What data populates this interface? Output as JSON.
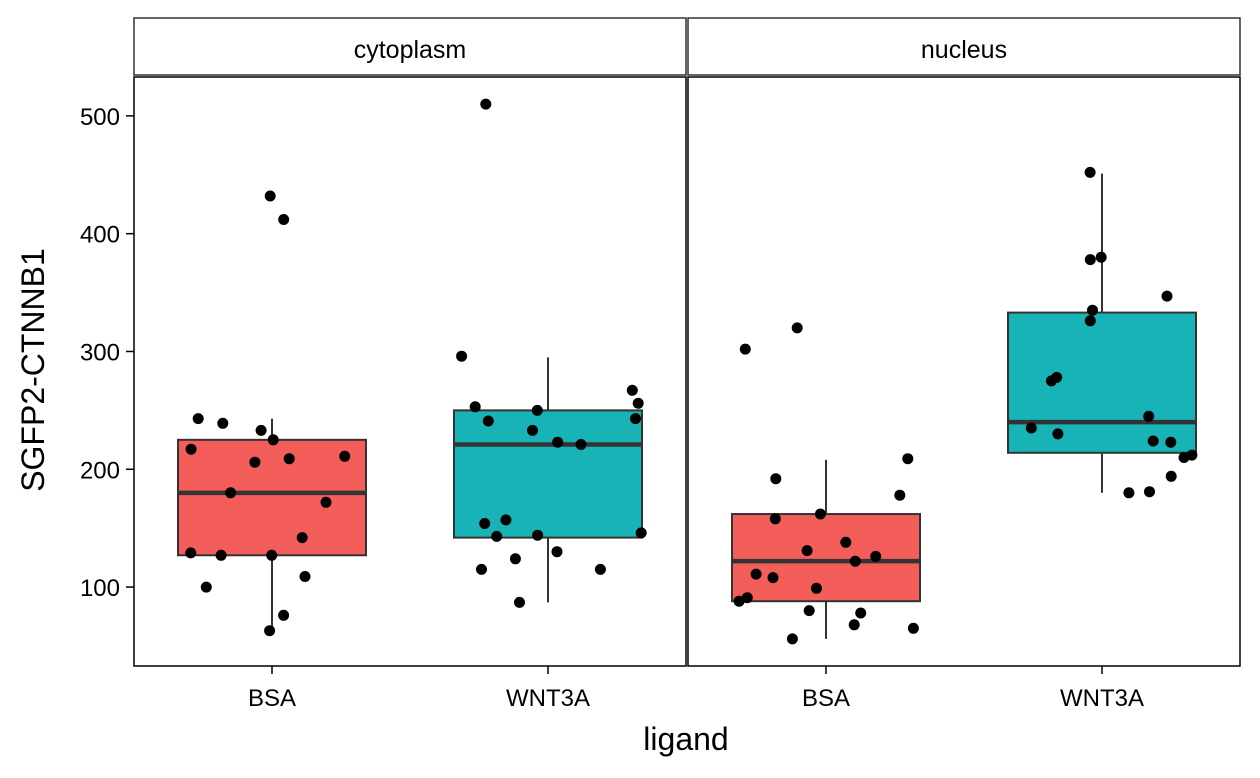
{
  "chart_data": {
    "type": "box",
    "ylabel": "SGFP2-CTNNB1",
    "xlabel": "ligand",
    "ylim": [
      33,
      533
    ],
    "yticks": [
      100,
      200,
      300,
      400,
      500
    ],
    "categories": [
      "BSA",
      "WNT3A"
    ],
    "colors": {
      "BSA": "#F35E5A",
      "WNT3A": "#17B3B7"
    },
    "panels": [
      {
        "label": "cytoplasm",
        "groups": [
          {
            "category": "BSA",
            "box": {
              "whisker_low": 64,
              "q1": 127,
              "median": 180,
              "q3": 225,
              "whisker_high": 243
            },
            "points": [
              432,
              412,
              243,
              239,
              233,
              225,
              217,
              211,
              209,
              206,
              180,
              172,
              142,
              129,
              127,
              127,
              109,
              100,
              76,
              63
            ]
          },
          {
            "category": "WNT3A",
            "box": {
              "whisker_low": 87,
              "q1": 142,
              "median": 221,
              "q3": 250,
              "whisker_high": 295
            },
            "points": [
              510,
              296,
              267,
              256,
              253,
              250,
              243,
              241,
              233,
              223,
              221,
              157,
              154,
              146,
              144,
              143,
              130,
              124,
              115,
              115,
              87
            ]
          }
        ]
      },
      {
        "label": "nucleus",
        "groups": [
          {
            "category": "BSA",
            "box": {
              "whisker_low": 56,
              "q1": 88,
              "median": 122,
              "q3": 162,
              "whisker_high": 208
            },
            "points": [
              320,
              302,
              209,
              192,
              178,
              162,
              158,
              138,
              131,
              126,
              122,
              111,
              108,
              99,
              91,
              88,
              80,
              78,
              68,
              65,
              56
            ]
          },
          {
            "category": "WNT3A",
            "box": {
              "whisker_low": 180,
              "q1": 214,
              "median": 240,
              "q3": 333,
              "whisker_high": 451
            },
            "points": [
              452,
              380,
              378,
              347,
              335,
              326,
              278,
              275,
              245,
              235,
              230,
              224,
              223,
              212,
              210,
              194,
              181,
              180
            ]
          }
        ]
      }
    ]
  }
}
